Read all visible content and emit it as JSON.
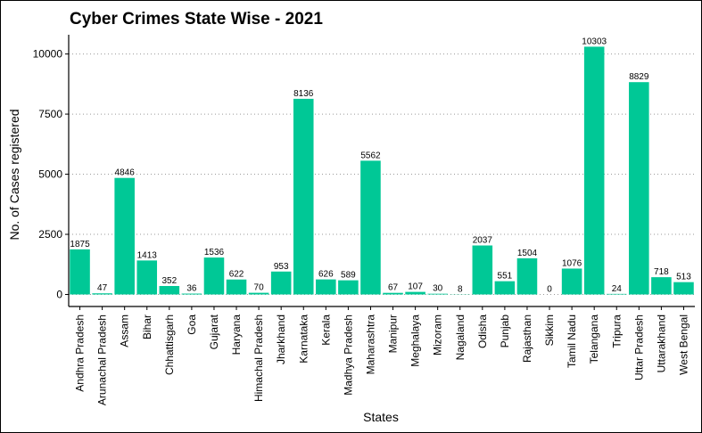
{
  "chart_data": {
    "type": "bar",
    "title": "Cyber Crimes State Wise - 2021",
    "xlabel": "States",
    "ylabel": "No. of Cases registered",
    "ylim": [
      -500,
      10800
    ],
    "yticks": [
      0,
      2500,
      5000,
      7500,
      10000
    ],
    "grid": "horizontal-dotted",
    "bar_color": "#00c896",
    "categories": [
      "Andhra Pradesh",
      "Arunachal Pradesh",
      "Assam",
      "Bihar",
      "Chhattisgarh",
      "Goa",
      "Gujarat",
      "Haryana",
      "Himachal Pradesh",
      "Jharkhand",
      "Karnataka",
      "Kerala",
      "Madhya Pradesh",
      "Maharashtra",
      "Manipur",
      "Meghalaya",
      "Mizoram",
      "Nagaland",
      "Odisha",
      "Punjab",
      "Rajasthan",
      "Sikkim",
      "Tamil Nadu",
      "Telangana",
      "Tripura",
      "Uttar Pradesh",
      "Uttarakhand",
      "West Bengal"
    ],
    "values": [
      1875,
      47,
      4846,
      1413,
      352,
      36,
      1536,
      622,
      70,
      953,
      8136,
      626,
      589,
      5562,
      67,
      107,
      30,
      8,
      2037,
      551,
      1504,
      0,
      1076,
      10303,
      24,
      8829,
      718,
      513
    ]
  }
}
